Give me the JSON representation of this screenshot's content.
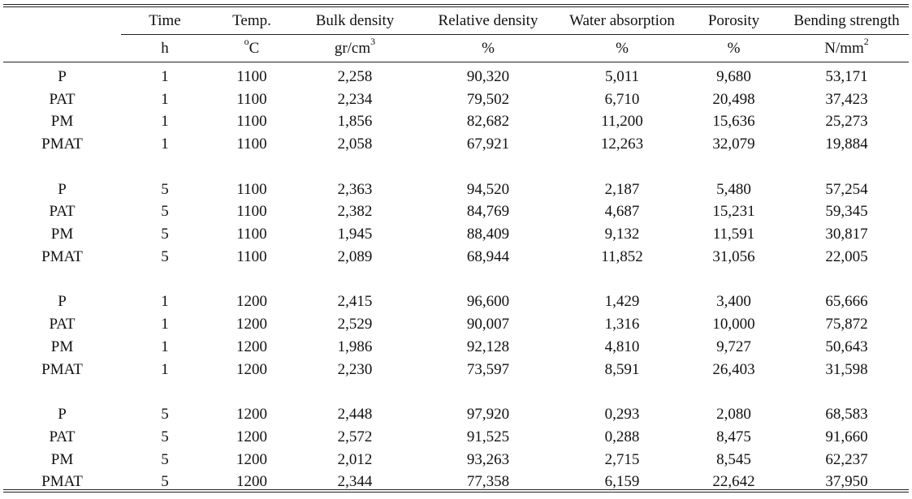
{
  "headers": {
    "row1": [
      "",
      "Time",
      "Temp.",
      "Bulk density",
      "Relative density",
      "Water absorption",
      "Porosity",
      "Bending strength"
    ],
    "row2": {
      "time": "h",
      "temp_prefix": "o",
      "temp_unit": "C",
      "bulk_base": "gr/cm",
      "bulk_sup": "3",
      "relative": "%",
      "water": "%",
      "porosity": "%",
      "bending_base": "N/mm",
      "bending_sup": "2"
    }
  },
  "groups": [
    {
      "rows": [
        [
          "P",
          "1",
          "1100",
          "2,258",
          "90,320",
          "5,011",
          "9,680",
          "53,171"
        ],
        [
          "PAT",
          "1",
          "1100",
          "2,234",
          "79,502",
          "6,710",
          "20,498",
          "37,423"
        ],
        [
          "PM",
          "1",
          "1100",
          "1,856",
          "82,682",
          "11,200",
          "15,636",
          "25,273"
        ],
        [
          "PMAT",
          "1",
          "1100",
          "2,058",
          "67,921",
          "12,263",
          "32,079",
          "19,884"
        ]
      ]
    },
    {
      "rows": [
        [
          "P",
          "5",
          "1100",
          "2,363",
          "94,520",
          "2,187",
          "5,480",
          "57,254"
        ],
        [
          "PAT",
          "5",
          "1100",
          "2,382",
          "84,769",
          "4,687",
          "15,231",
          "59,345"
        ],
        [
          "PM",
          "5",
          "1100",
          "1,945",
          "88,409",
          "9,132",
          "11,591",
          "30,817"
        ],
        [
          "PMAT",
          "5",
          "1100",
          "2,089",
          "68,944",
          "11,852",
          "31,056",
          "22,005"
        ]
      ]
    },
    {
      "rows": [
        [
          "P",
          "1",
          "1200",
          "2,415",
          "96,600",
          "1,429",
          "3,400",
          "65,666"
        ],
        [
          "PAT",
          "1",
          "1200",
          "2,529",
          "90,007",
          "1,316",
          "10,000",
          "75,872"
        ],
        [
          "PM",
          "1",
          "1200",
          "1,986",
          "92,128",
          "4,810",
          "9,727",
          "50,643"
        ],
        [
          "PMAT",
          "1",
          "1200",
          "2,230",
          "73,597",
          "8,591",
          "26,403",
          "31,598"
        ]
      ]
    },
    {
      "rows": [
        [
          "P",
          "5",
          "1200",
          "2,448",
          "97,920",
          "0,293",
          "2,080",
          "68,583"
        ],
        [
          "PAT",
          "5",
          "1200",
          "2,572",
          "91,525",
          "0,288",
          "8,475",
          "91,660"
        ],
        [
          "PM",
          "5",
          "1200",
          "2,012",
          "93,263",
          "2,715",
          "8,545",
          "62,237"
        ],
        [
          "PMAT",
          "5",
          "1200",
          "2,344",
          "77,358",
          "6,159",
          "22,642",
          "37,950"
        ]
      ]
    }
  ]
}
